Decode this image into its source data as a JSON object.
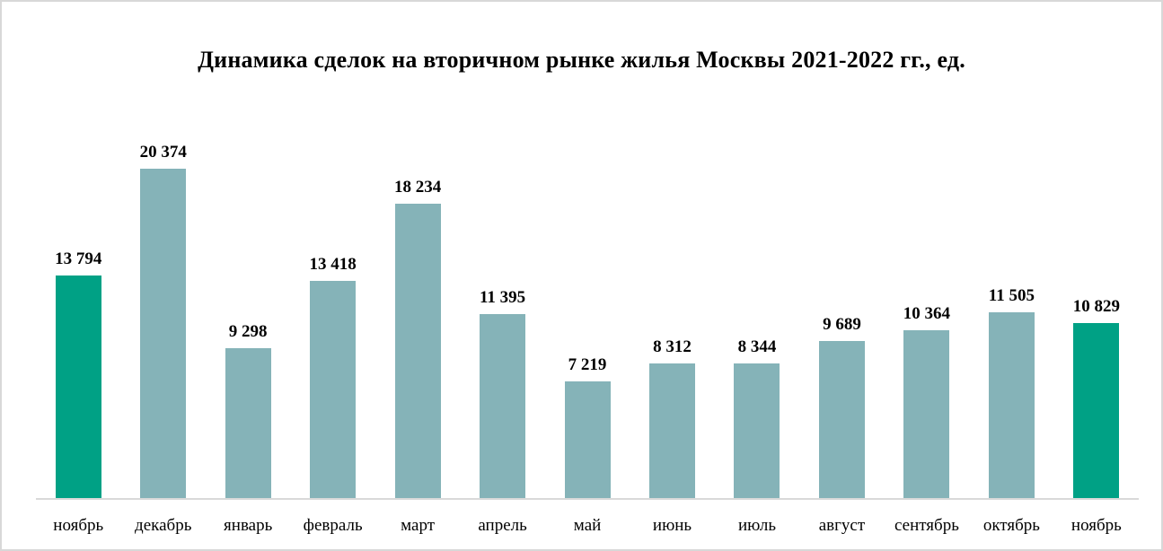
{
  "title": "Динамика сделок на вторичном рынке жилья Москвы 2021-2022 гг., ед.",
  "colors": {
    "highlight": "#00A185",
    "regular": "#85B3B8",
    "baseline": "#D9D9D9",
    "frame_border": "#D8D8D8",
    "text": "#000000"
  },
  "chart_data": {
    "type": "bar",
    "title": "Динамика сделок на вторичном рынке жилья Москвы 2021-2022 гг., ед.",
    "categories": [
      "ноябрь",
      "декабрь",
      "январь",
      "февраль",
      "март",
      "апрель",
      "май",
      "июнь",
      "июль",
      "август",
      "сентябрь",
      "октябрь",
      "ноябрь"
    ],
    "values": [
      13794,
      20374,
      9298,
      13418,
      18234,
      11395,
      7219,
      8312,
      8344,
      9689,
      10364,
      11505,
      10829
    ],
    "value_labels": [
      "13 794",
      "20 374",
      "9 298",
      "13 418",
      "18 234",
      "11 395",
      "7 219",
      "8 312",
      "8 344",
      "9 689",
      "10 364",
      "11 505",
      "10 829"
    ],
    "highlighted_indices": [
      0,
      12
    ],
    "xlabel": "",
    "ylabel": "",
    "grid": false,
    "legend": false,
    "y_axis_visible": false
  }
}
